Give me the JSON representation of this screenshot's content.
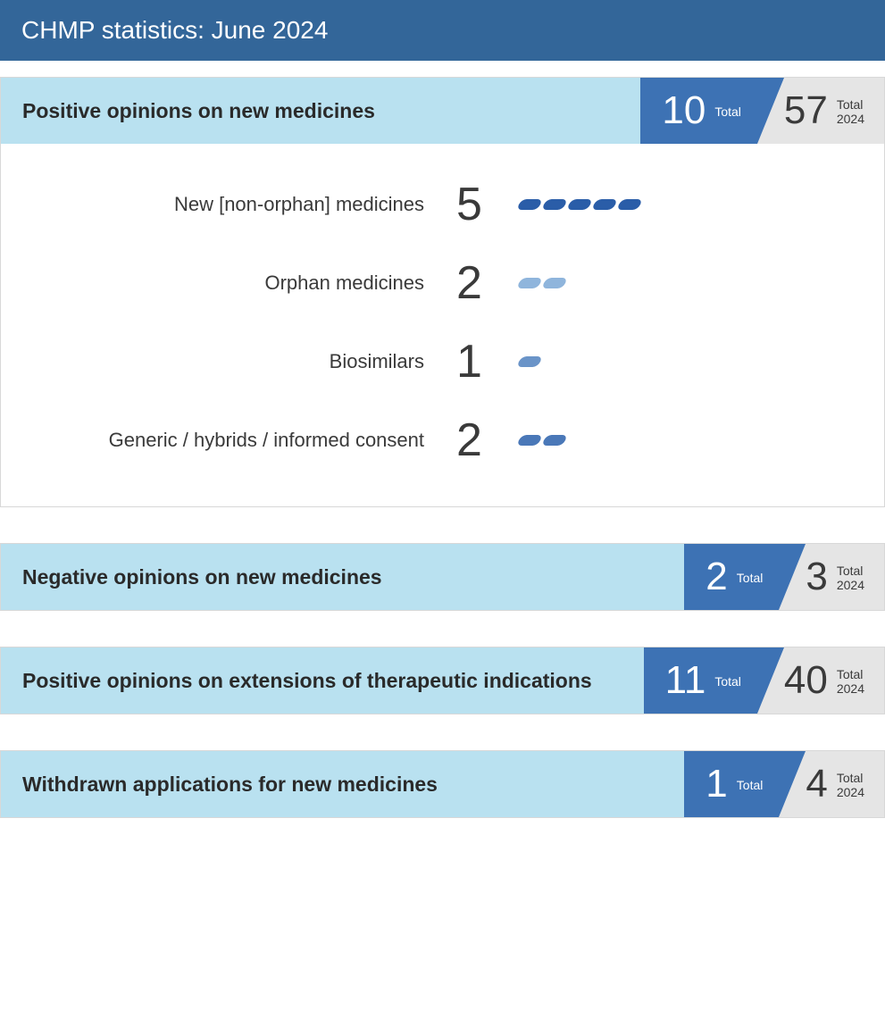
{
  "title": "CHMP statistics: June 2024",
  "colors": {
    "title_bg": "#336699",
    "light_blue": "#b9e1f0",
    "mid_blue": "#3d72b4",
    "grey": "#e5e5e5",
    "text": "#3a3a3a"
  },
  "labels": {
    "total": "Total",
    "total_year": "2024"
  },
  "sections": [
    {
      "title": "Positive opinions on new medicines",
      "current": 10,
      "year_total": 57,
      "rows": [
        {
          "label": "New [non-orphan] medicines",
          "value": 5,
          "pill_color": "#2a5da8"
        },
        {
          "label": "Orphan medicines",
          "value": 2,
          "pill_color": "#8fb5dc"
        },
        {
          "label": "Biosimilars",
          "value": 1,
          "pill_color": "#6a94c8"
        },
        {
          "label": "Generic / hybrids / informed consent",
          "value": 2,
          "pill_color": "#4a78b8"
        }
      ]
    },
    {
      "title": "Negative opinions on new medicines",
      "current": 2,
      "year_total": 3,
      "rows": []
    },
    {
      "title": "Positive opinions on extensions of therapeutic indications",
      "current": 11,
      "year_total": 40,
      "rows": []
    },
    {
      "title": "Withdrawn applications for new medicines",
      "current": 1,
      "year_total": 4,
      "rows": []
    }
  ]
}
